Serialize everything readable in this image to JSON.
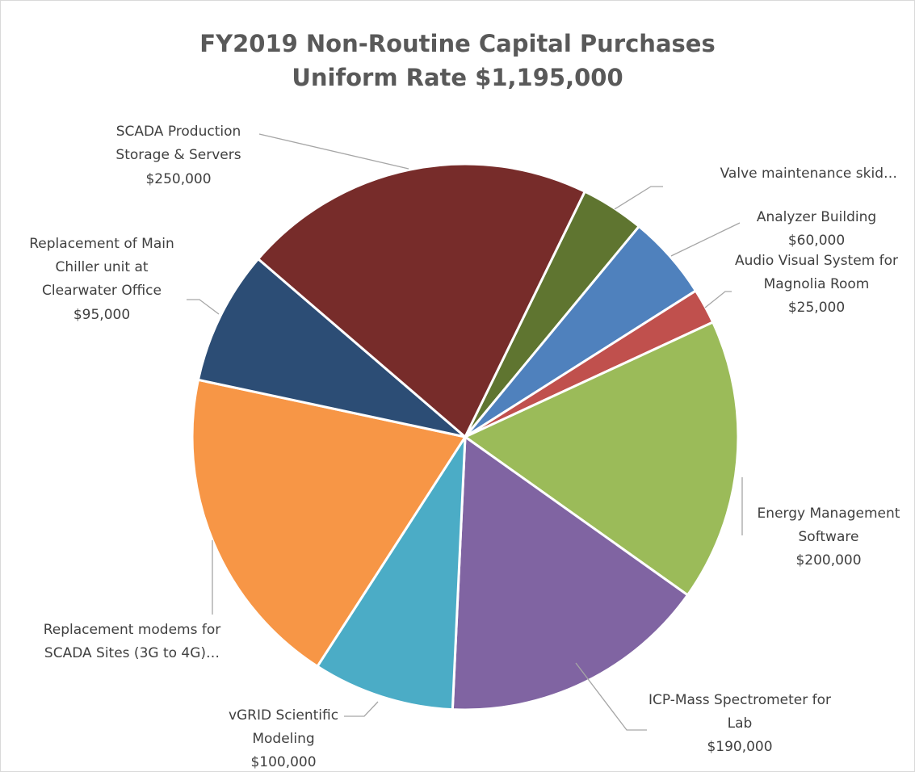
{
  "chart_data": {
    "type": "pie",
    "title": "FY2019 Non-Routine Capital Purchases",
    "subtitle": "Uniform Rate $1,195,000",
    "categories": [
      "Valve maintenance skid…",
      "Analyzer Building",
      "Audio Visual System for Magnolia Room",
      "Energy Management Software",
      "ICP-Mass Spectrometer for Lab",
      "vGRID Scientific Modeling",
      "Replacement modems for SCADA Sites (3G to 4G)…",
      "Replacement of Main Chiller unit at Clearwater Office",
      "SCADA Production Storage & Servers"
    ],
    "values": [
      45000,
      60000,
      25000,
      200000,
      190000,
      100000,
      230000,
      95000,
      250000
    ],
    "value_labels": [
      null,
      "$60,000",
      "$25,000",
      "$200,000",
      "$190,000",
      "$100,000",
      null,
      "$95,000",
      "$250,000"
    ],
    "colors": [
      "#5f7530",
      "#4f81bd",
      "#c0504d",
      "#9bbb59",
      "#8064a2",
      "#4bacc6",
      "#f79646",
      "#2c4d75",
      "#772c2a"
    ]
  }
}
